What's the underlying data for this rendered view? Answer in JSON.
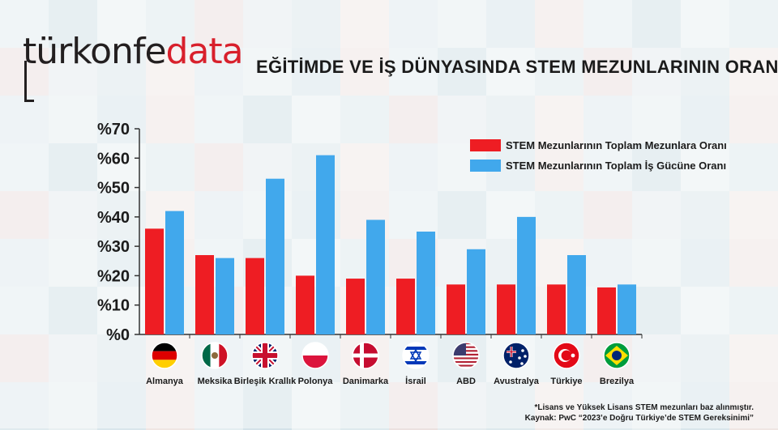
{
  "header": {
    "logo_prefix": "türkonfe",
    "logo_accent": "data",
    "title": "EĞİTİMDE VE İŞ DÜNYASINDA STEM MEZUNLARININ ORANI"
  },
  "footnote": {
    "line1": "*Lisans ve Yüksek Lisans STEM mezunları baz alınmıştır.",
    "line2": "Kaynak: PwC “2023’e Doğru Türkiye’de STEM Gereksinimi”"
  },
  "colors": {
    "series1": "#ee1d23",
    "series2": "#41a8ec",
    "axis": "#333333"
  },
  "chart_data": {
    "type": "bar",
    "categories": [
      "Almanya",
      "Meksika",
      "Birleşik Krallık",
      "Polonya",
      "Danimarka",
      "İsrail",
      "ABD",
      "Avustralya",
      "Türkiye",
      "Brezilya"
    ],
    "flags": [
      "germany-flag-icon",
      "mexico-flag-icon",
      "uk-flag-icon",
      "poland-flag-icon",
      "denmark-flag-icon",
      "israel-flag-icon",
      "usa-flag-icon",
      "australia-flag-icon",
      "turkey-flag-icon",
      "brazil-flag-icon"
    ],
    "series": [
      {
        "name": "STEM Mezunlarının Toplam Mezunlara Oranı",
        "values": [
          36,
          27,
          26,
          20,
          19,
          19,
          17,
          17,
          17,
          16
        ]
      },
      {
        "name": "STEM Mezunlarının Toplam İş Gücüne Oranı",
        "values": [
          42,
          26,
          53,
          61,
          39,
          35,
          29,
          40,
          27,
          17
        ]
      }
    ],
    "ylim": [
      0,
      70
    ],
    "yticks": [
      "%0",
      "%10",
      "%20",
      "%30",
      "%40",
      "%50",
      "%60",
      "%70"
    ],
    "legend_position": "top-right",
    "grid": false
  }
}
